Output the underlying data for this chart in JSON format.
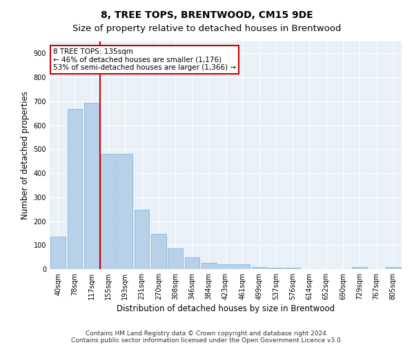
{
  "title": "8, TREE TOPS, BRENTWOOD, CM15 9DE",
  "subtitle": "Size of property relative to detached houses in Brentwood",
  "xlabel": "Distribution of detached houses by size in Brentwood",
  "ylabel": "Number of detached properties",
  "bar_color": "#b8d0e8",
  "bar_edge_color": "#7aafd4",
  "background_color": "#ffffff",
  "plot_bg_color": "#e8f0f8",
  "grid_color": "#ffffff",
  "annotation_text": "8 TREE TOPS: 135sqm\n← 46% of detached houses are smaller (1,176)\n53% of semi-detached houses are larger (1,366) →",
  "annotation_box_color": "#cc0000",
  "vline_color": "#cc0000",
  "categories": [
    "40sqm",
    "78sqm",
    "117sqm",
    "155sqm",
    "193sqm",
    "231sqm",
    "270sqm",
    "308sqm",
    "346sqm",
    "384sqm",
    "423sqm",
    "461sqm",
    "499sqm",
    "537sqm",
    "576sqm",
    "614sqm",
    "652sqm",
    "690sqm",
    "729sqm",
    "767sqm",
    "805sqm"
  ],
  "values": [
    135,
    667,
    695,
    482,
    482,
    247,
    148,
    85,
    50,
    25,
    20,
    20,
    10,
    7,
    5,
    0,
    0,
    0,
    8,
    0,
    8
  ],
  "ylim": [
    0,
    950
  ],
  "yticks": [
    0,
    100,
    200,
    300,
    400,
    500,
    600,
    700,
    800,
    900
  ],
  "footnote1": "Contains HM Land Registry data © Crown copyright and database right 2024.",
  "footnote2": "Contains public sector information licensed under the Open Government Licence v3.0.",
  "title_fontsize": 10,
  "subtitle_fontsize": 9.5,
  "axis_label_fontsize": 8.5,
  "tick_fontsize": 7,
  "footnote_fontsize": 6.5,
  "annotation_fontsize": 7.5
}
